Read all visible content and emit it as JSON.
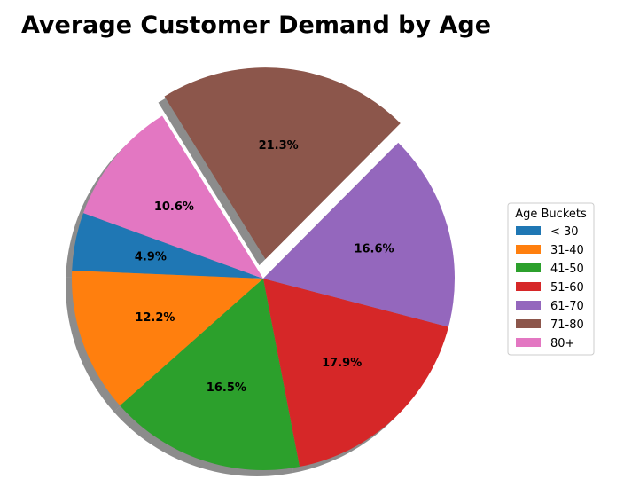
{
  "chart_data": {
    "type": "pie",
    "title": "Average Customer Demand by Age",
    "legend_title": "Age Buckets",
    "legend_position": "right",
    "shadow": true,
    "start_angle_deg": 160,
    "exploded": [
      "71-80"
    ],
    "slices": [
      {
        "label": "< 30",
        "value": 4.9,
        "pct_label": "4.9%",
        "color": "#1f77b4"
      },
      {
        "label": "31-40",
        "value": 12.2,
        "pct_label": "12.2%",
        "color": "#ff7f0e"
      },
      {
        "label": "41-50",
        "value": 16.5,
        "pct_label": "16.5%",
        "color": "#2ca02c"
      },
      {
        "label": "51-60",
        "value": 17.9,
        "pct_label": "17.9%",
        "color": "#d62728"
      },
      {
        "label": "61-70",
        "value": 16.6,
        "pct_label": "16.6%",
        "color": "#9467bd"
      },
      {
        "label": "71-80",
        "value": 21.3,
        "pct_label": "21.3%",
        "color": "#8c564b"
      },
      {
        "label": "80+",
        "value": 10.6,
        "pct_label": "10.6%",
        "color": "#e377c2"
      }
    ]
  }
}
